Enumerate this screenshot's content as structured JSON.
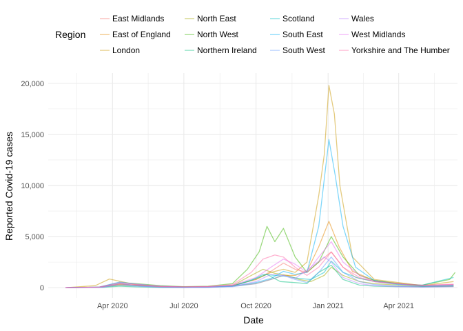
{
  "chart_data": {
    "type": "line",
    "title": "",
    "xlabel": "Date",
    "ylabel": "Reported Covid-19 cases",
    "legend_title": "Region",
    "legend_position": "top",
    "grid": true,
    "x_range": [
      "2020-01-10",
      "2021-06-15"
    ],
    "ylim": [
      -1000,
      21000
    ],
    "y_ticks": [
      0,
      5000,
      10000,
      15000,
      20000
    ],
    "y_tick_labels": [
      "0",
      "5,000",
      "10,000",
      "15,000",
      "20,000"
    ],
    "x_ticks": [
      "2020-04-01",
      "2020-07-01",
      "2020-10-01",
      "2021-01-01",
      "2021-04-01"
    ],
    "x_tick_labels": [
      "Apr 2020",
      "Jul 2020",
      "Oct 2020",
      "Jan 2021",
      "Apr 2021"
    ],
    "line_opacity": 0.5,
    "series": [
      {
        "name": "East Midlands",
        "color": "#F8766D",
        "points": [
          [
            "2020-02-01",
            0
          ],
          [
            "2020-03-15",
            50
          ],
          [
            "2020-04-10",
            300
          ],
          [
            "2020-05-01",
            250
          ],
          [
            "2020-06-01",
            120
          ],
          [
            "2020-07-01",
            80
          ],
          [
            "2020-08-01",
            100
          ],
          [
            "2020-09-01",
            200
          ],
          [
            "2020-10-01",
            800
          ],
          [
            "2020-10-20",
            1600
          ],
          [
            "2020-11-05",
            2400
          ],
          [
            "2020-11-20",
            1800
          ],
          [
            "2020-12-05",
            1500
          ],
          [
            "2020-12-20",
            2500
          ],
          [
            "2021-01-05",
            3500
          ],
          [
            "2021-01-20",
            2000
          ],
          [
            "2021-02-05",
            1000
          ],
          [
            "2021-03-01",
            600
          ],
          [
            "2021-04-01",
            400
          ],
          [
            "2021-05-01",
            200
          ],
          [
            "2021-06-10",
            300
          ]
        ]
      },
      {
        "name": "East of England",
        "color": "#E58700",
        "points": [
          [
            "2020-02-01",
            0
          ],
          [
            "2020-03-15",
            50
          ],
          [
            "2020-04-10",
            350
          ],
          [
            "2020-05-01",
            250
          ],
          [
            "2020-06-01",
            120
          ],
          [
            "2020-07-01",
            70
          ],
          [
            "2020-08-01",
            80
          ],
          [
            "2020-09-01",
            150
          ],
          [
            "2020-10-01",
            400
          ],
          [
            "2020-10-20",
            800
          ],
          [
            "2020-11-05",
            1200
          ],
          [
            "2020-11-20",
            1200
          ],
          [
            "2020-12-05",
            1600
          ],
          [
            "2020-12-20",
            4000
          ],
          [
            "2021-01-02",
            6500
          ],
          [
            "2021-01-15",
            4000
          ],
          [
            "2021-02-01",
            1600
          ],
          [
            "2021-03-01",
            700
          ],
          [
            "2021-04-01",
            400
          ],
          [
            "2021-05-01",
            150
          ],
          [
            "2021-06-10",
            200
          ]
        ]
      },
      {
        "name": "London",
        "color": "#C99800",
        "points": [
          [
            "2020-02-01",
            0
          ],
          [
            "2020-03-10",
            200
          ],
          [
            "2020-03-28",
            850
          ],
          [
            "2020-04-12",
            600
          ],
          [
            "2020-05-01",
            300
          ],
          [
            "2020-06-01",
            100
          ],
          [
            "2020-07-01",
            60
          ],
          [
            "2020-08-01",
            80
          ],
          [
            "2020-09-01",
            200
          ],
          [
            "2020-10-01",
            800
          ],
          [
            "2020-10-20",
            1500
          ],
          [
            "2020-11-05",
            1800
          ],
          [
            "2020-11-20",
            1500
          ],
          [
            "2020-12-05",
            2500
          ],
          [
            "2020-12-20",
            9000
          ],
          [
            "2020-12-27",
            13000
          ],
          [
            "2021-01-02",
            19800
          ],
          [
            "2021-01-09",
            17000
          ],
          [
            "2021-01-16",
            10000
          ],
          [
            "2021-02-01",
            3000
          ],
          [
            "2021-03-01",
            800
          ],
          [
            "2021-04-01",
            500
          ],
          [
            "2021-05-01",
            200
          ],
          [
            "2021-06-10",
            600
          ]
        ]
      },
      {
        "name": "North East",
        "color": "#A3A500",
        "points": [
          [
            "2020-02-01",
            0
          ],
          [
            "2020-03-15",
            30
          ],
          [
            "2020-04-10",
            250
          ],
          [
            "2020-05-01",
            200
          ],
          [
            "2020-06-01",
            80
          ],
          [
            "2020-07-01",
            30
          ],
          [
            "2020-08-01",
            40
          ],
          [
            "2020-09-01",
            200
          ],
          [
            "2020-09-25",
            1200
          ],
          [
            "2020-10-10",
            1800
          ],
          [
            "2020-10-25",
            1400
          ],
          [
            "2020-11-10",
            1200
          ],
          [
            "2020-11-25",
            800
          ],
          [
            "2020-12-10",
            600
          ],
          [
            "2020-12-27",
            1200
          ],
          [
            "2021-01-05",
            2000
          ],
          [
            "2021-01-20",
            1200
          ],
          [
            "2021-02-10",
            600
          ],
          [
            "2021-03-01",
            400
          ],
          [
            "2021-04-01",
            250
          ],
          [
            "2021-05-01",
            100
          ],
          [
            "2021-06-10",
            150
          ]
        ]
      },
      {
        "name": "North West",
        "color": "#39B600",
        "points": [
          [
            "2020-02-01",
            0
          ],
          [
            "2020-03-15",
            60
          ],
          [
            "2020-04-10",
            500
          ],
          [
            "2020-05-01",
            400
          ],
          [
            "2020-06-01",
            200
          ],
          [
            "2020-07-01",
            100
          ],
          [
            "2020-08-01",
            150
          ],
          [
            "2020-09-01",
            400
          ],
          [
            "2020-09-20",
            1800
          ],
          [
            "2020-10-05",
            3500
          ],
          [
            "2020-10-15",
            6000
          ],
          [
            "2020-10-25",
            4500
          ],
          [
            "2020-11-05",
            5800
          ],
          [
            "2020-11-20",
            3000
          ],
          [
            "2020-12-05",
            1500
          ],
          [
            "2020-12-20",
            2500
          ],
          [
            "2021-01-05",
            5000
          ],
          [
            "2021-01-20",
            3000
          ],
          [
            "2021-02-10",
            1200
          ],
          [
            "2021-03-01",
            700
          ],
          [
            "2021-04-01",
            400
          ],
          [
            "2021-05-01",
            250
          ],
          [
            "2021-06-05",
            800
          ],
          [
            "2021-06-12",
            1500
          ]
        ]
      },
      {
        "name": "Northern Ireland",
        "color": "#00BF7D",
        "points": [
          [
            "2020-02-01",
            0
          ],
          [
            "2020-03-20",
            30
          ],
          [
            "2020-04-10",
            150
          ],
          [
            "2020-05-01",
            80
          ],
          [
            "2020-06-01",
            20
          ],
          [
            "2020-07-01",
            10
          ],
          [
            "2020-08-01",
            40
          ],
          [
            "2020-09-01",
            150
          ],
          [
            "2020-10-01",
            900
          ],
          [
            "2020-10-15",
            1300
          ],
          [
            "2020-11-01",
            600
          ],
          [
            "2020-11-20",
            500
          ],
          [
            "2020-12-05",
            400
          ],
          [
            "2020-12-20",
            1500
          ],
          [
            "2021-01-05",
            2200
          ],
          [
            "2021-01-20",
            800
          ],
          [
            "2021-02-10",
            250
          ],
          [
            "2021-03-01",
            150
          ],
          [
            "2021-04-01",
            100
          ],
          [
            "2021-05-01",
            80
          ],
          [
            "2021-06-10",
            120
          ]
        ]
      },
      {
        "name": "Scotland",
        "color": "#00BFC4",
        "points": [
          [
            "2020-02-01",
            0
          ],
          [
            "2020-03-20",
            50
          ],
          [
            "2020-04-10",
            400
          ],
          [
            "2020-05-01",
            200
          ],
          [
            "2020-06-01",
            30
          ],
          [
            "2020-07-01",
            10
          ],
          [
            "2020-08-01",
            40
          ],
          [
            "2020-09-01",
            150
          ],
          [
            "2020-09-25",
            700
          ],
          [
            "2020-10-10",
            1300
          ],
          [
            "2020-10-25",
            1200
          ],
          [
            "2020-11-10",
            1100
          ],
          [
            "2020-11-25",
            900
          ],
          [
            "2020-12-10",
            800
          ],
          [
            "2020-12-27",
            1500
          ],
          [
            "2021-01-05",
            2600
          ],
          [
            "2021-01-20",
            1500
          ],
          [
            "2021-02-10",
            900
          ],
          [
            "2021-03-01",
            600
          ],
          [
            "2021-04-01",
            300
          ],
          [
            "2021-05-01",
            250
          ],
          [
            "2021-06-10",
            1000
          ]
        ]
      },
      {
        "name": "South East",
        "color": "#00B0F6",
        "points": [
          [
            "2020-02-01",
            0
          ],
          [
            "2020-03-15",
            60
          ],
          [
            "2020-04-10",
            550
          ],
          [
            "2020-05-01",
            350
          ],
          [
            "2020-06-01",
            150
          ],
          [
            "2020-07-01",
            60
          ],
          [
            "2020-08-01",
            80
          ],
          [
            "2020-09-01",
            150
          ],
          [
            "2020-10-01",
            500
          ],
          [
            "2020-10-20",
            900
          ],
          [
            "2020-11-05",
            1600
          ],
          [
            "2020-11-20",
            1300
          ],
          [
            "2020-12-05",
            1500
          ],
          [
            "2020-12-20",
            6000
          ],
          [
            "2021-01-02",
            14500
          ],
          [
            "2021-01-10",
            11000
          ],
          [
            "2021-01-20",
            6000
          ],
          [
            "2021-02-05",
            2000
          ],
          [
            "2021-03-01",
            700
          ],
          [
            "2021-04-01",
            350
          ],
          [
            "2021-05-01",
            150
          ],
          [
            "2021-06-10",
            250
          ]
        ]
      },
      {
        "name": "South West",
        "color": "#619CFF",
        "points": [
          [
            "2020-02-01",
            0
          ],
          [
            "2020-03-15",
            30
          ],
          [
            "2020-04-10",
            250
          ],
          [
            "2020-05-01",
            150
          ],
          [
            "2020-06-01",
            50
          ],
          [
            "2020-07-01",
            20
          ],
          [
            "2020-08-01",
            40
          ],
          [
            "2020-09-01",
            100
          ],
          [
            "2020-10-01",
            400
          ],
          [
            "2020-10-20",
            800
          ],
          [
            "2020-11-05",
            1200
          ],
          [
            "2020-11-20",
            800
          ],
          [
            "2020-12-05",
            500
          ],
          [
            "2020-12-20",
            1500
          ],
          [
            "2021-01-05",
            3000
          ],
          [
            "2021-01-20",
            1500
          ],
          [
            "2021-02-10",
            600
          ],
          [
            "2021-03-01",
            300
          ],
          [
            "2021-04-01",
            150
          ],
          [
            "2021-05-01",
            80
          ],
          [
            "2021-06-10",
            200
          ]
        ]
      },
      {
        "name": "Wales",
        "color": "#B983FF",
        "points": [
          [
            "2020-02-01",
            0
          ],
          [
            "2020-03-20",
            40
          ],
          [
            "2020-04-10",
            400
          ],
          [
            "2020-05-01",
            200
          ],
          [
            "2020-06-01",
            60
          ],
          [
            "2020-07-01",
            20
          ],
          [
            "2020-08-01",
            30
          ],
          [
            "2020-09-01",
            150
          ],
          [
            "2020-10-01",
            600
          ],
          [
            "2020-10-20",
            1300
          ],
          [
            "2020-11-05",
            1200
          ],
          [
            "2020-11-20",
            900
          ],
          [
            "2020-12-10",
            2000
          ],
          [
            "2020-12-27",
            3000
          ],
          [
            "2021-01-05",
            2500
          ],
          [
            "2021-01-20",
            1000
          ],
          [
            "2021-02-10",
            400
          ],
          [
            "2021-03-01",
            200
          ],
          [
            "2021-04-01",
            100
          ],
          [
            "2021-05-01",
            50
          ],
          [
            "2021-06-10",
            100
          ]
        ]
      },
      {
        "name": "West Midlands",
        "color": "#E76BF3",
        "points": [
          [
            "2020-02-01",
            0
          ],
          [
            "2020-03-15",
            60
          ],
          [
            "2020-04-10",
            500
          ],
          [
            "2020-05-01",
            350
          ],
          [
            "2020-06-01",
            150
          ],
          [
            "2020-07-01",
            80
          ],
          [
            "2020-08-01",
            100
          ],
          [
            "2020-09-01",
            250
          ],
          [
            "2020-10-01",
            1000
          ],
          [
            "2020-10-20",
            2000
          ],
          [
            "2020-11-05",
            2800
          ],
          [
            "2020-11-20",
            2300
          ],
          [
            "2020-12-05",
            1500
          ],
          [
            "2020-12-20",
            3000
          ],
          [
            "2021-01-05",
            4500
          ],
          [
            "2021-01-20",
            2500
          ],
          [
            "2021-02-10",
            1200
          ],
          [
            "2021-03-01",
            600
          ],
          [
            "2021-04-01",
            350
          ],
          [
            "2021-05-01",
            200
          ],
          [
            "2021-06-10",
            300
          ]
        ]
      },
      {
        "name": "Yorkshire and The Humber",
        "color": "#FF67A4",
        "points": [
          [
            "2020-02-01",
            0
          ],
          [
            "2020-03-15",
            50
          ],
          [
            "2020-04-10",
            400
          ],
          [
            "2020-05-01",
            300
          ],
          [
            "2020-06-01",
            120
          ],
          [
            "2020-07-01",
            80
          ],
          [
            "2020-08-01",
            120
          ],
          [
            "2020-09-01",
            300
          ],
          [
            "2020-09-25",
            1500
          ],
          [
            "2020-10-10",
            2800
          ],
          [
            "2020-10-25",
            3200
          ],
          [
            "2020-11-05",
            3000
          ],
          [
            "2020-11-20",
            2000
          ],
          [
            "2020-12-05",
            1200
          ],
          [
            "2020-12-20",
            2000
          ],
          [
            "2021-01-05",
            3500
          ],
          [
            "2021-01-20",
            2000
          ],
          [
            "2021-02-10",
            1000
          ],
          [
            "2021-03-01",
            600
          ],
          [
            "2021-04-01",
            400
          ],
          [
            "2021-05-01",
            250
          ],
          [
            "2021-06-10",
            350
          ]
        ]
      }
    ]
  }
}
